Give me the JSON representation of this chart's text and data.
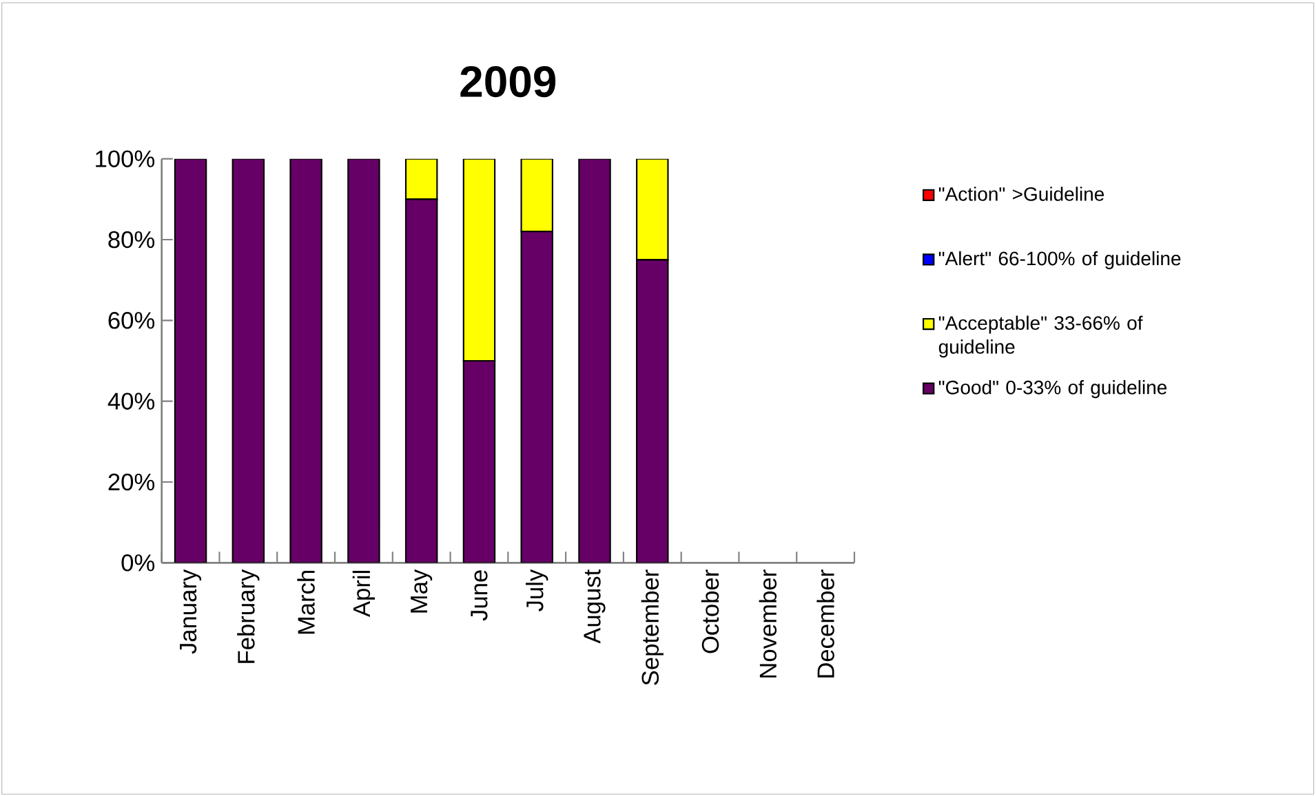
{
  "chart_data": {
    "type": "bar",
    "title": "2009",
    "stacked": true,
    "categories": [
      "January",
      "February",
      "March",
      "April",
      "May",
      "June",
      "July",
      "August",
      "September",
      "October",
      "November",
      "December"
    ],
    "series": [
      {
        "name": "\"Good\" 0-33% of guideline",
        "color": "#660066",
        "values": [
          100,
          100,
          100,
          100,
          90,
          50,
          82,
          100,
          75,
          null,
          null,
          null
        ]
      },
      {
        "name": "\"Acceptable\" 33-66% of guideline",
        "color": "#ffff00",
        "values": [
          0,
          0,
          0,
          0,
          10,
          50,
          18,
          0,
          25,
          null,
          null,
          null
        ]
      },
      {
        "name": "\"Alert\" 66-100% of guideline",
        "color": "#0000ff",
        "values": [
          0,
          0,
          0,
          0,
          0,
          0,
          0,
          0,
          0,
          null,
          null,
          null
        ]
      },
      {
        "name": "\"Action\" >Guideline",
        "color": "#ff0000",
        "values": [
          0,
          0,
          0,
          0,
          0,
          0,
          0,
          0,
          0,
          null,
          null,
          null
        ]
      }
    ],
    "ylim": [
      0,
      100
    ],
    "yticks": [
      {
        "value": 0,
        "label": "0%"
      },
      {
        "value": 20,
        "label": "20%"
      },
      {
        "value": 40,
        "label": "40%"
      },
      {
        "value": 60,
        "label": "60%"
      },
      {
        "value": 80,
        "label": "80%"
      },
      {
        "value": 100,
        "label": "100%"
      }
    ],
    "legend": "right"
  }
}
